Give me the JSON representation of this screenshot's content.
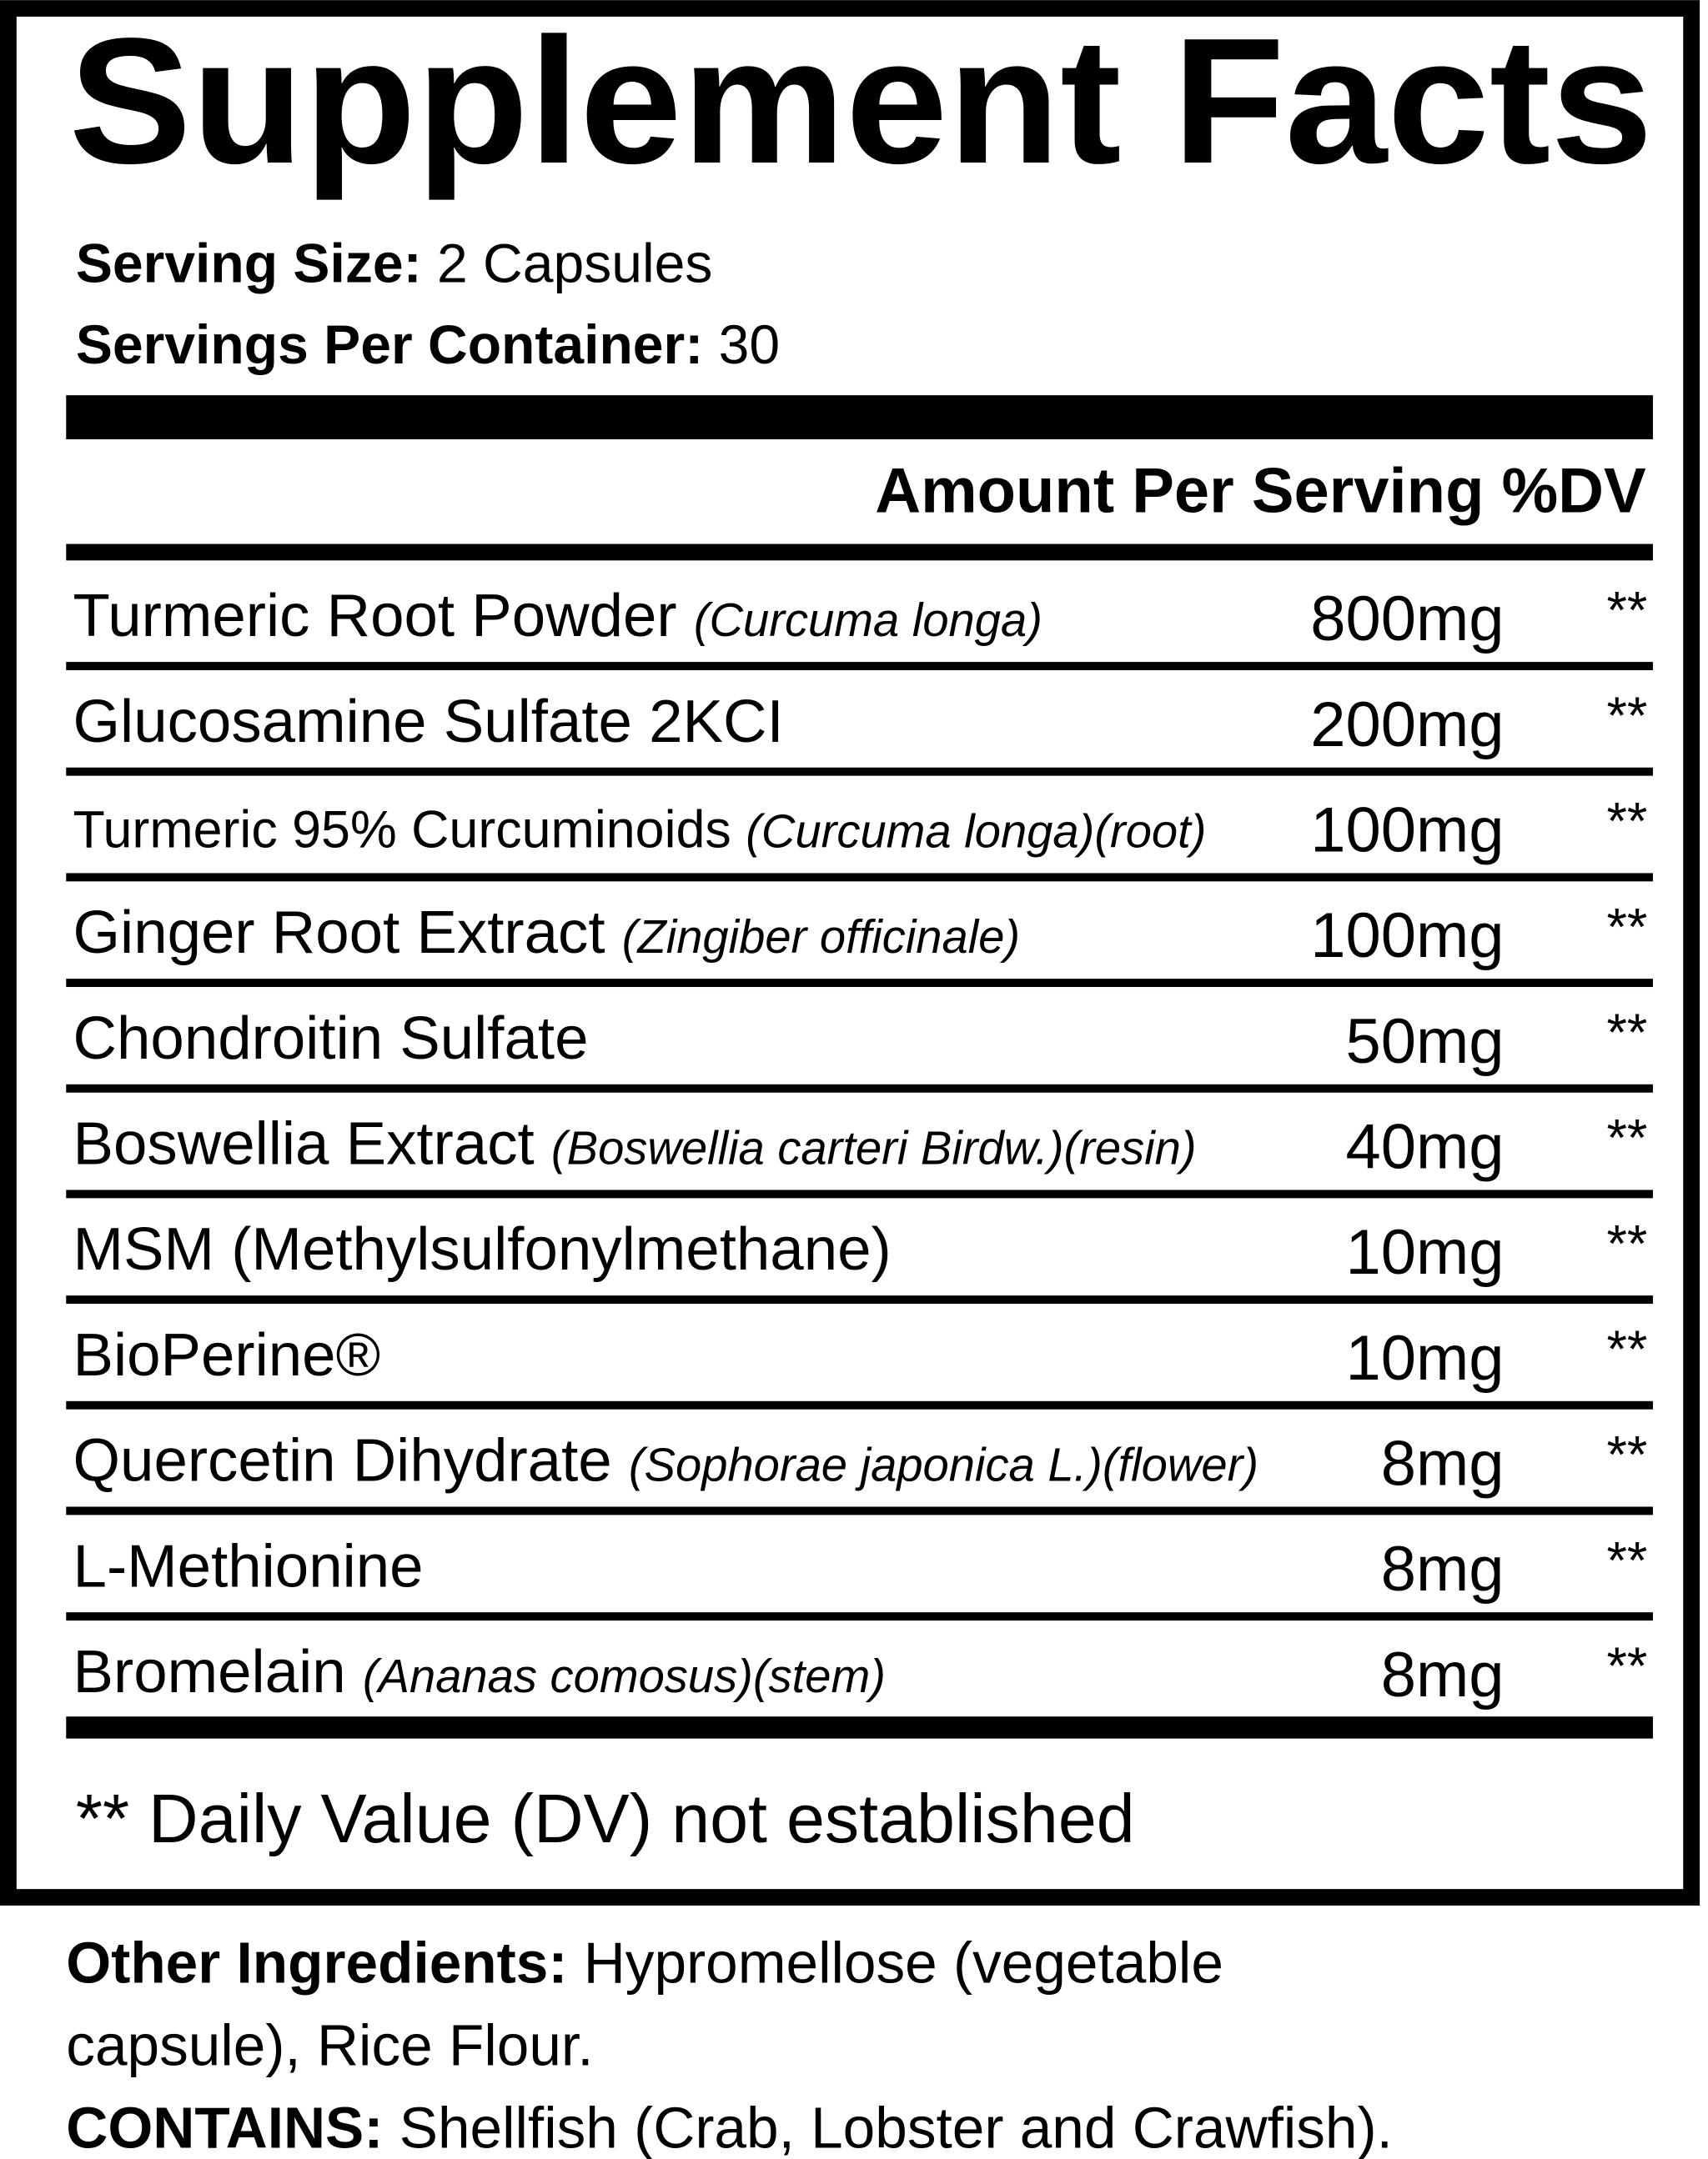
{
  "title": "Supplement Facts",
  "serving": {
    "size_label": "Serving Size:",
    "size_value": "2 Capsules",
    "per_container_label": "Servings Per Container:",
    "per_container_value": "30"
  },
  "table": {
    "header": "Amount Per Serving %DV",
    "rows": [
      {
        "name": "Turmeric Root Powder",
        "latin": "(Curcuma longa)",
        "amount": "800mg",
        "dv": "**"
      },
      {
        "name": "Glucosamine Sulfate 2KCI",
        "amount": "200mg",
        "dv": "**"
      },
      {
        "name": "Turmeric 95% Curcuminoids",
        "latin": "(Curcuma longa)(root)",
        "amount": "100mg",
        "dv": "**"
      },
      {
        "name": "Ginger Root Extract",
        "latin": "(Zingiber officinale)",
        "amount": "100mg",
        "dv": "**"
      },
      {
        "name": "Chondroitin Sulfate",
        "amount": "50mg",
        "dv": "**"
      },
      {
        "name": "Boswellia Extract",
        "latin": "(Boswellia carteri Birdw.)(resin)",
        "amount": "40mg",
        "dv": "**"
      },
      {
        "name": "MSM (Methylsulfonylmethane)",
        "amount": "10mg",
        "dv": "**"
      },
      {
        "name": "BioPerine®",
        "amount": "10mg",
        "dv": "**"
      },
      {
        "name": "Quercetin Dihydrate",
        "latin": "(Sophorae japonica L.)(flower)",
        "amount": "8mg",
        "dv": "**"
      },
      {
        "name": "L-Methionine",
        "amount": "8mg",
        "dv": "**"
      },
      {
        "name": "Bromelain",
        "latin": "(Ananas comosus)(stem)",
        "amount": "8mg",
        "dv": "**"
      }
    ],
    "footnote": "** Daily Value (DV) not established"
  },
  "other_ingredients": {
    "label": "Other Ingredients:",
    "lines": [
      "Hypromellose (vegetable",
      "capsule), Rice Flour."
    ]
  },
  "contains": {
    "label": "CONTAINS:",
    "text": "Shellfish (Crab, Lobster and Crawfish)."
  }
}
